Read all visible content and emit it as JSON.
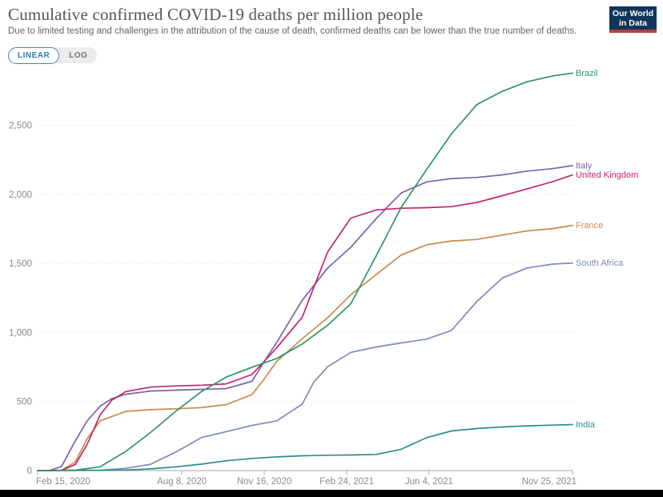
{
  "header": {
    "title": "Cumulative confirmed COVID-19 deaths per million people",
    "subtitle": "Due to limited testing and challenges in the attribution of the cause of death, confirmed deaths can be lower than the true number of deaths.",
    "logo": {
      "line1": "Our World",
      "line2": "in Data",
      "bg_color": "#12355B",
      "bar_color": "#B5413E"
    }
  },
  "toggle": {
    "linear_label": "LINEAR",
    "log_label": "LOG",
    "active": "LINEAR",
    "accent_color": "#3578B3"
  },
  "chart_data": {
    "type": "line",
    "title": "Cumulative confirmed COVID-19 deaths per million people",
    "xlabel": "",
    "ylabel": "",
    "grid": "dotted horizontal",
    "legend_position": "right-end-labels",
    "x_unit": "days since Feb 15, 2020",
    "x_range_days": [
      0,
      649
    ],
    "x_ticks": [
      {
        "day": 0,
        "label": "Feb 15, 2020"
      },
      {
        "day": 175,
        "label": "Aug 8, 2020"
      },
      {
        "day": 275,
        "label": "Nov 16, 2020"
      },
      {
        "day": 375,
        "label": "Feb 24, 2021"
      },
      {
        "day": 475,
        "label": "Jun 4, 2021"
      },
      {
        "day": 649,
        "label": "Nov 25, 2021"
      }
    ],
    "y_range": [
      0,
      2900
    ],
    "y_ticks": [
      {
        "value": 0,
        "label": "0"
      },
      {
        "value": 500,
        "label": "500"
      },
      {
        "value": 1000,
        "label": "1,000"
      },
      {
        "value": 1500,
        "label": "1,500"
      },
      {
        "value": 2000,
        "label": "2,000"
      },
      {
        "value": 2500,
        "label": "2,500"
      }
    ],
    "series": [
      {
        "name": "France",
        "color": "#C98A4C",
        "points": [
          [
            0,
            0
          ],
          [
            29,
            2
          ],
          [
            46,
            65
          ],
          [
            60,
            230
          ],
          [
            76,
            361
          ],
          [
            107,
            428
          ],
          [
            137,
            441
          ],
          [
            168,
            448
          ],
          [
            199,
            456
          ],
          [
            229,
            478
          ],
          [
            260,
            550
          ],
          [
            274,
            655
          ],
          [
            290,
            790
          ],
          [
            321,
            954
          ],
          [
            352,
            1108
          ],
          [
            380,
            1273
          ],
          [
            411,
            1420
          ],
          [
            441,
            1560
          ],
          [
            472,
            1635
          ],
          [
            502,
            1662
          ],
          [
            533,
            1673
          ],
          [
            564,
            1705
          ],
          [
            594,
            1735
          ],
          [
            625,
            1752
          ],
          [
            649,
            1775
          ]
        ]
      },
      {
        "name": "Italy",
        "color": "#7B64A9",
        "points": [
          [
            0,
            0
          ],
          [
            15,
            1
          ],
          [
            29,
            30
          ],
          [
            46,
            218
          ],
          [
            60,
            360
          ],
          [
            76,
            467
          ],
          [
            90,
            520
          ],
          [
            107,
            553
          ],
          [
            137,
            576
          ],
          [
            168,
            582
          ],
          [
            199,
            588
          ],
          [
            229,
            594
          ],
          [
            260,
            646
          ],
          [
            274,
            780
          ],
          [
            290,
            928
          ],
          [
            321,
            1233
          ],
          [
            352,
            1467
          ],
          [
            380,
            1617
          ],
          [
            411,
            1825
          ],
          [
            441,
            2009
          ],
          [
            472,
            2090
          ],
          [
            502,
            2114
          ],
          [
            533,
            2122
          ],
          [
            564,
            2141
          ],
          [
            594,
            2168
          ],
          [
            625,
            2186
          ],
          [
            649,
            2208
          ]
        ]
      },
      {
        "name": "United Kingdom",
        "color": "#C4256E",
        "points": [
          [
            0,
            0
          ],
          [
            29,
            1
          ],
          [
            46,
            45
          ],
          [
            60,
            190
          ],
          [
            76,
            405
          ],
          [
            90,
            510
          ],
          [
            107,
            572
          ],
          [
            137,
            604
          ],
          [
            168,
            613
          ],
          [
            199,
            618
          ],
          [
            229,
            628
          ],
          [
            260,
            695
          ],
          [
            274,
            784
          ],
          [
            290,
            889
          ],
          [
            321,
            1110
          ],
          [
            335,
            1325
          ],
          [
            352,
            1584
          ],
          [
            380,
            1828
          ],
          [
            411,
            1887
          ],
          [
            441,
            1899
          ],
          [
            472,
            1903
          ],
          [
            502,
            1911
          ],
          [
            533,
            1941
          ],
          [
            564,
            1990
          ],
          [
            594,
            2040
          ],
          [
            625,
            2092
          ],
          [
            649,
            2140
          ]
        ]
      },
      {
        "name": "South Africa",
        "color": "#7C8BB8",
        "points": [
          [
            0,
            0
          ],
          [
            76,
            3
          ],
          [
            107,
            16
          ],
          [
            137,
            46
          ],
          [
            168,
            135
          ],
          [
            199,
            240
          ],
          [
            229,
            282
          ],
          [
            260,
            327
          ],
          [
            290,
            360
          ],
          [
            321,
            481
          ],
          [
            335,
            640
          ],
          [
            352,
            752
          ],
          [
            380,
            856
          ],
          [
            411,
            895
          ],
          [
            441,
            924
          ],
          [
            472,
            952
          ],
          [
            502,
            1014
          ],
          [
            533,
            1225
          ],
          [
            564,
            1395
          ],
          [
            594,
            1467
          ],
          [
            625,
            1495
          ],
          [
            649,
            1503
          ]
        ]
      },
      {
        "name": "India",
        "color": "#2B8E88",
        "points": [
          [
            0,
            0
          ],
          [
            76,
            2
          ],
          [
            107,
            4
          ],
          [
            137,
            12
          ],
          [
            168,
            27
          ],
          [
            199,
            47
          ],
          [
            229,
            71
          ],
          [
            260,
            88
          ],
          [
            290,
            99
          ],
          [
            321,
            107
          ],
          [
            352,
            111
          ],
          [
            380,
            113
          ],
          [
            411,
            117
          ],
          [
            441,
            154
          ],
          [
            472,
            238
          ],
          [
            502,
            287
          ],
          [
            533,
            305
          ],
          [
            564,
            316
          ],
          [
            594,
            324
          ],
          [
            625,
            329
          ],
          [
            649,
            333
          ]
        ]
      },
      {
        "name": "Brazil",
        "color": "#2E9368",
        "points": [
          [
            0,
            0
          ],
          [
            46,
            3
          ],
          [
            76,
            28
          ],
          [
            107,
            139
          ],
          [
            137,
            276
          ],
          [
            168,
            431
          ],
          [
            199,
            573
          ],
          [
            229,
            677
          ],
          [
            260,
            748
          ],
          [
            290,
            811
          ],
          [
            321,
            916
          ],
          [
            352,
            1053
          ],
          [
            380,
            1208
          ],
          [
            411,
            1556
          ],
          [
            441,
            1904
          ],
          [
            472,
            2180
          ],
          [
            502,
            2437
          ],
          [
            533,
            2650
          ],
          [
            564,
            2747
          ],
          [
            594,
            2815
          ],
          [
            625,
            2857
          ],
          [
            649,
            2878
          ]
        ]
      }
    ]
  }
}
